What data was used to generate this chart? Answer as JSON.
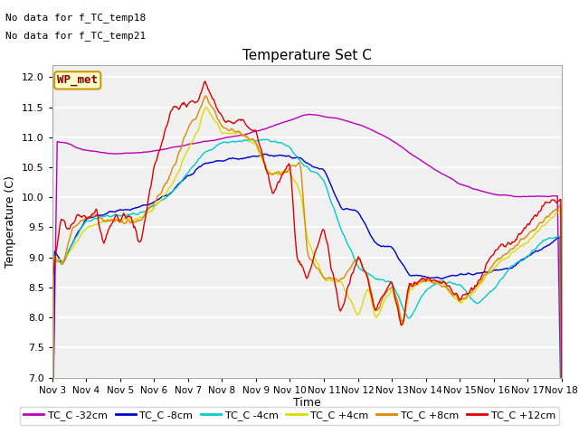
{
  "title": "Temperature Set C",
  "xlabel": "Time",
  "ylabel": "Temperature (C)",
  "ylim": [
    7.0,
    12.2
  ],
  "yticks": [
    7.0,
    7.5,
    8.0,
    8.5,
    9.0,
    9.5,
    10.0,
    10.5,
    11.0,
    11.5,
    12.0
  ],
  "fig_bg_color": "#e8e8e8",
  "plot_bg_color": "#f0f0f0",
  "annotations": [
    "No data for f_TC_temp18",
    "No data for f_TC_temp21"
  ],
  "wp_met_label": "WP_met",
  "colors": {
    "purple": "#bb00bb",
    "blue": "#0000cc",
    "cyan": "#00cccc",
    "yellow": "#dddd00",
    "orange": "#dd8800",
    "red": "#dd0000"
  },
  "xtick_labels": [
    "Nov 3",
    "Nov 4",
    "Nov 5",
    "Nov 6",
    "Nov 7",
    "Nov 8",
    "Nov 9",
    "Nov 10",
    "Nov 11",
    "Nov 12",
    "Nov 13",
    "Nov 14",
    "Nov 15",
    "Nov 16",
    "Nov 17",
    "Nov 18"
  ],
  "legend_labels": [
    "TC_C -32cm",
    "TC_C -8cm",
    "TC_C -4cm",
    "TC_C +4cm",
    "TC_C +8cm",
    "TC_C +12cm"
  ]
}
